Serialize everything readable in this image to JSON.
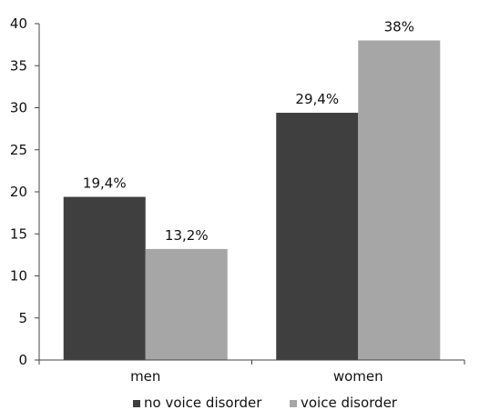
{
  "chart_data": {
    "type": "bar",
    "title": "",
    "xlabel": "",
    "ylabel": "",
    "categories": [
      "men",
      "women"
    ],
    "ylim": [
      0,
      40
    ],
    "yticks": [
      0,
      5,
      10,
      15,
      20,
      25,
      30,
      35,
      40
    ],
    "grid": false,
    "legend_position": "bottom",
    "series": [
      {
        "name": "no voice disorder",
        "values": [
          19.4,
          29.4
        ],
        "labels": [
          "19,4%",
          "29,4%"
        ],
        "color": "#3f3f3f"
      },
      {
        "name": "voice disorder",
        "values": [
          13.2,
          38
        ],
        "labels": [
          "13,2%",
          "38%"
        ],
        "color": "#a6a6a6"
      }
    ]
  }
}
